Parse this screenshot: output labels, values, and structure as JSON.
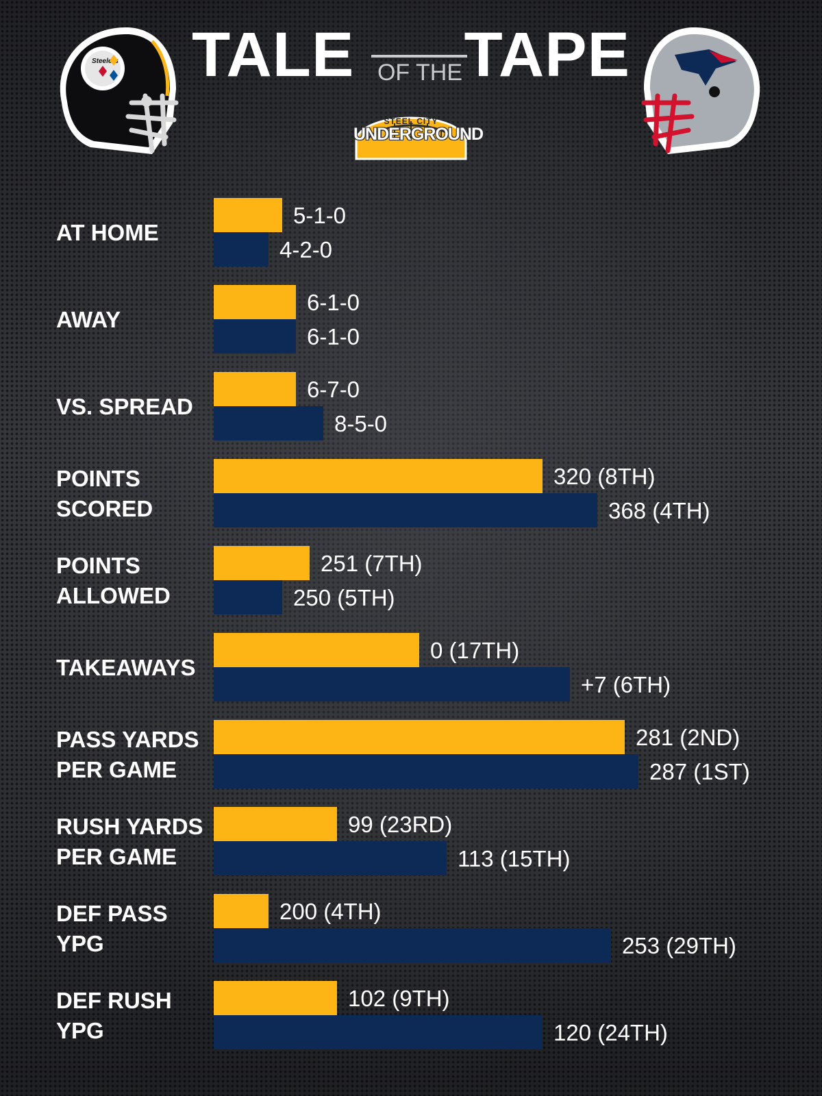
{
  "header": {
    "title_left": "TALE",
    "title_mid": "OF THE",
    "title_right": "TAPE",
    "brand_sub": "STEEL CITY",
    "brand_main": "UNDERGROUND",
    "helmet_left_text": "Steelers"
  },
  "colors": {
    "steelers_bar": "#FDB515",
    "patriots_bar": "#0C2A55",
    "background": "#2a2c30"
  },
  "chart_data": {
    "type": "bar",
    "orientation": "horizontal",
    "title": "TALE OF THE TAPE",
    "categories": [
      "AT HOME",
      "AWAY",
      "VS. SPREAD",
      "POINTS SCORED",
      "POINTS ALLOWED",
      "TAKEAWAYS",
      "PASS YARDS PER GAME",
      "RUSH YARDS PER GAME",
      "DEF PASS YPG",
      "DEF RUSH YPG"
    ],
    "category_lines": [
      [
        "AT HOME"
      ],
      [
        "AWAY"
      ],
      [
        "VS. SPREAD"
      ],
      [
        "POINTS",
        "SCORED"
      ],
      [
        "POINTS",
        "ALLOWED"
      ],
      [
        "TAKEAWAYS"
      ],
      [
        "PASS YARDS",
        "PER GAME"
      ],
      [
        "RUSH YARDS",
        "PER GAME"
      ],
      [
        "DEF PASS",
        "YPG"
      ],
      [
        "DEF RUSH",
        "YPG"
      ]
    ],
    "series": [
      {
        "values": [
          5,
          6,
          6,
          320,
          251,
          0,
          281,
          99,
          200,
          102
        ],
        "labels": [
          "5-1-0",
          "6-1-0",
          "6-7-0",
          "320 (8TH)",
          "251 (7TH)",
          "0 (17TH)",
          "281 (2ND)",
          "99 (23RD)",
          "200 (4TH)",
          "102 (9TH)"
        ]
      },
      {
        "values": [
          4,
          6,
          8,
          368,
          250,
          7,
          287,
          113,
          253,
          120
        ],
        "labels": [
          "4-2-0",
          "6-1-0",
          "8-5-0",
          "368 (4TH)",
          "250 (5TH)",
          "+7 (6TH)",
          "287 (1ST)",
          "113 (15TH)",
          "253 (29TH)",
          "120 (24TH)"
        ]
      }
    ],
    "bar_lengths_relative": [
      [
        0.2,
        0.16
      ],
      [
        0.24,
        0.24
      ],
      [
        0.24,
        0.32
      ],
      [
        0.96,
        1.12
      ],
      [
        0.28,
        0.2
      ],
      [
        0.6,
        1.04
      ],
      [
        1.2,
        1.24
      ],
      [
        0.36,
        0.68
      ],
      [
        0.16,
        1.16
      ],
      [
        0.36,
        0.96
      ]
    ]
  }
}
